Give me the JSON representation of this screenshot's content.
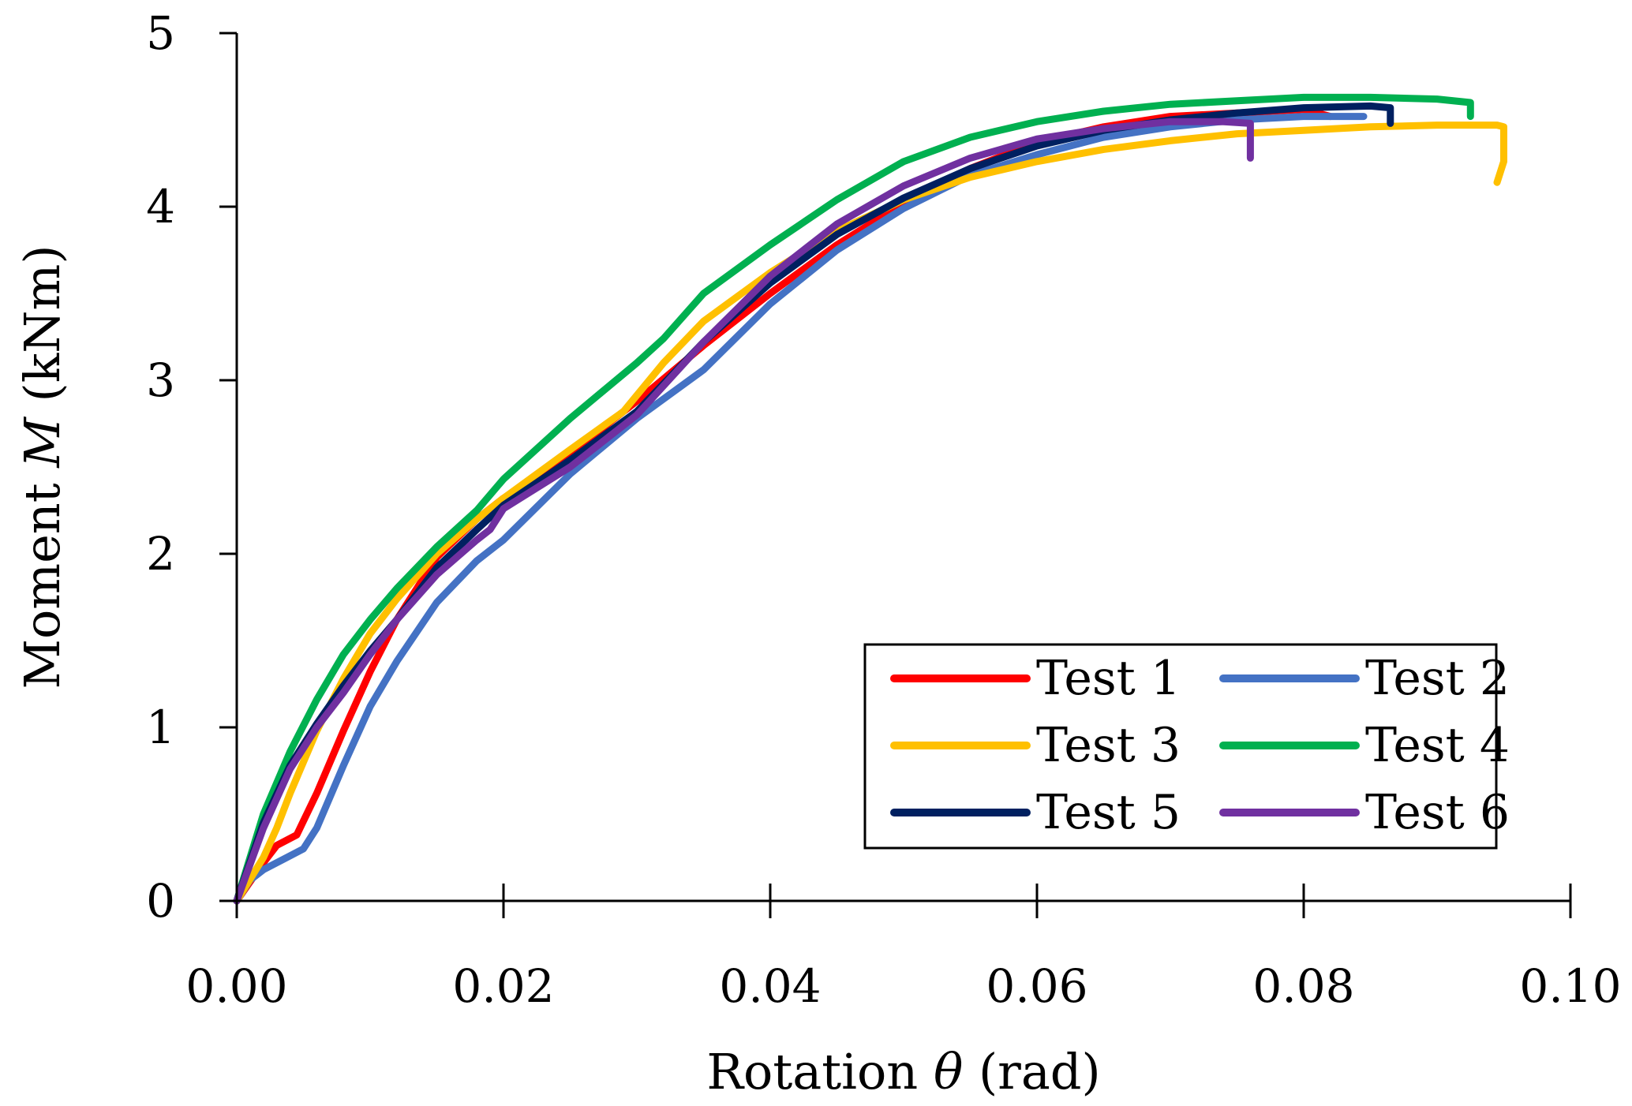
{
  "chart_data": {
    "type": "line",
    "xlabel": "Rotation θ (rad)",
    "ylabel": "Moment M (kNm)",
    "xlabel_parts": {
      "prefix": "Rotation ",
      "symbol": "θ",
      "suffix": " (rad)"
    },
    "ylabel_parts": {
      "prefix": "Moment ",
      "symbol": "M",
      "suffix": " (kNm)"
    },
    "xlim": [
      0,
      0.1
    ],
    "ylim": [
      0,
      5
    ],
    "xticks": [
      0,
      0.02,
      0.04,
      0.06,
      0.08,
      0.1
    ],
    "xtick_labels": [
      "0.00",
      "0.02",
      "0.04",
      "0.06",
      "0.08",
      "0.10"
    ],
    "yticks": [
      0,
      1,
      2,
      3,
      4,
      5
    ],
    "ytick_labels": [
      "0",
      "1",
      "2",
      "3",
      "4",
      "5"
    ],
    "grid": false,
    "legend_position": "bottom-right",
    "series": [
      {
        "name": "Test 1",
        "color": "#FF0000",
        "x": [
          0,
          0.002,
          0.003,
          0.0045,
          0.006,
          0.008,
          0.01,
          0.012,
          0.015,
          0.018,
          0.02,
          0.025,
          0.028,
          0.03,
          0.035,
          0.04,
          0.045,
          0.05,
          0.055,
          0.06,
          0.065,
          0.07,
          0.075,
          0.08,
          0.082
        ],
        "y": [
          0,
          0.22,
          0.32,
          0.38,
          0.62,
          0.98,
          1.32,
          1.62,
          1.98,
          2.2,
          2.32,
          2.57,
          2.76,
          2.88,
          3.2,
          3.5,
          3.78,
          4.02,
          4.22,
          4.37,
          4.46,
          4.52,
          4.54,
          4.56,
          4.52
        ]
      },
      {
        "name": "Test 2",
        "color": "#4472C4",
        "x": [
          0,
          0.001,
          0.002,
          0.0035,
          0.005,
          0.006,
          0.008,
          0.01,
          0.012,
          0.015,
          0.018,
          0.02,
          0.025,
          0.03,
          0.035,
          0.04,
          0.045,
          0.05,
          0.055,
          0.06,
          0.065,
          0.07,
          0.075,
          0.08,
          0.0845
        ],
        "y": [
          0,
          0.12,
          0.18,
          0.24,
          0.3,
          0.42,
          0.78,
          1.12,
          1.38,
          1.72,
          1.96,
          2.08,
          2.46,
          2.78,
          3.06,
          3.44,
          3.75,
          3.99,
          4.18,
          4.3,
          4.4,
          4.46,
          4.5,
          4.52,
          4.52
        ]
      },
      {
        "name": "Test 3",
        "color": "#FFC000",
        "x": [
          0,
          0.002,
          0.003,
          0.004,
          0.006,
          0.008,
          0.01,
          0.012,
          0.015,
          0.018,
          0.02,
          0.025,
          0.029,
          0.032,
          0.035,
          0.04,
          0.045,
          0.05,
          0.055,
          0.06,
          0.065,
          0.07,
          0.075,
          0.08,
          0.085,
          0.09,
          0.0945,
          0.095,
          0.095,
          0.0945
        ],
        "y": [
          0,
          0.25,
          0.42,
          0.62,
          0.98,
          1.28,
          1.54,
          1.74,
          2.0,
          2.2,
          2.32,
          2.6,
          2.82,
          3.1,
          3.34,
          3.62,
          3.86,
          4.04,
          4.17,
          4.26,
          4.33,
          4.38,
          4.42,
          4.44,
          4.46,
          4.47,
          4.47,
          4.46,
          4.26,
          4.14
        ]
      },
      {
        "name": "Test 4",
        "color": "#00B050",
        "x": [
          0,
          0.002,
          0.004,
          0.006,
          0.008,
          0.01,
          0.012,
          0.015,
          0.018,
          0.02,
          0.025,
          0.03,
          0.032,
          0.035,
          0.04,
          0.045,
          0.05,
          0.055,
          0.06,
          0.065,
          0.07,
          0.075,
          0.08,
          0.085,
          0.09,
          0.0925,
          0.0925
        ],
        "y": [
          0,
          0.5,
          0.86,
          1.16,
          1.42,
          1.62,
          1.8,
          2.04,
          2.25,
          2.43,
          2.78,
          3.1,
          3.24,
          3.5,
          3.78,
          4.04,
          4.26,
          4.4,
          4.49,
          4.55,
          4.59,
          4.61,
          4.63,
          4.63,
          4.62,
          4.6,
          4.52
        ]
      },
      {
        "name": "Test 5",
        "color": "#002060",
        "x": [
          0,
          0.002,
          0.004,
          0.006,
          0.008,
          0.01,
          0.012,
          0.015,
          0.018,
          0.02,
          0.025,
          0.03,
          0.035,
          0.04,
          0.045,
          0.05,
          0.055,
          0.06,
          0.065,
          0.07,
          0.075,
          0.08,
          0.085,
          0.0865,
          0.0865
        ],
        "y": [
          0,
          0.45,
          0.78,
          1.02,
          1.24,
          1.44,
          1.62,
          1.92,
          2.14,
          2.28,
          2.54,
          2.82,
          3.22,
          3.56,
          3.84,
          4.05,
          4.22,
          4.35,
          4.44,
          4.5,
          4.54,
          4.57,
          4.58,
          4.57,
          4.48
        ]
      },
      {
        "name": "Test 6",
        "color": "#7030A0",
        "x": [
          0,
          0.002,
          0.004,
          0.006,
          0.008,
          0.01,
          0.012,
          0.015,
          0.018,
          0.019,
          0.02,
          0.025,
          0.03,
          0.035,
          0.04,
          0.045,
          0.05,
          0.055,
          0.06,
          0.065,
          0.07,
          0.074,
          0.076,
          0.076
        ],
        "y": [
          0,
          0.42,
          0.76,
          1.0,
          1.2,
          1.42,
          1.62,
          1.88,
          2.08,
          2.14,
          2.26,
          2.5,
          2.8,
          3.22,
          3.6,
          3.9,
          4.12,
          4.28,
          4.39,
          4.45,
          4.49,
          4.49,
          4.48,
          4.28
        ]
      }
    ]
  }
}
